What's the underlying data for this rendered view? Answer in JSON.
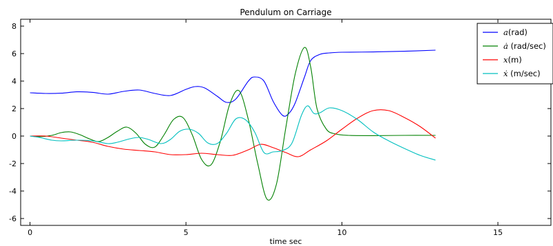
{
  "chart_data": {
    "type": "line",
    "title": "Pendulum on Carriage",
    "xlabel": "time sec",
    "ylabel": "",
    "xlim": [
      -0.3,
      16.7
    ],
    "ylim": [
      -6.5,
      8.5
    ],
    "x_ticks": [
      0,
      5,
      10,
      15
    ],
    "y_ticks": [
      -6,
      -4,
      -2,
      0,
      2,
      4,
      6,
      8
    ],
    "grid": false,
    "legend_placement": "top-right",
    "series": [
      {
        "name": "a(rad)",
        "label_parts": [
          "a",
          "(rad)"
        ],
        "color": "#0000ff",
        "x": [
          0,
          0.5,
          1.0,
          1.5,
          2.0,
          2.5,
          3.0,
          3.5,
          4.0,
          4.5,
          5.0,
          5.3,
          5.6,
          6.0,
          6.3,
          6.6,
          7.0,
          7.2,
          7.5,
          7.8,
          8.1,
          8.3,
          8.5,
          8.8,
          9.0,
          9.3,
          9.6,
          10.0,
          11.0,
          12.0,
          13.0
        ],
        "y": [
          3.15,
          3.1,
          3.12,
          3.22,
          3.18,
          3.05,
          3.25,
          3.35,
          3.1,
          2.95,
          3.4,
          3.6,
          3.5,
          2.9,
          2.45,
          2.7,
          4.0,
          4.3,
          4.0,
          2.5,
          1.5,
          1.65,
          2.4,
          4.3,
          5.5,
          5.95,
          6.05,
          6.1,
          6.12,
          6.17,
          6.25
        ]
      },
      {
        "name": "ȧ (rad/sec)",
        "label_parts": [
          "ȧ",
          " (rad/sec)"
        ],
        "color": "#008000",
        "x": [
          0,
          0.3,
          0.7,
          1.0,
          1.3,
          1.6,
          1.9,
          2.2,
          2.5,
          2.8,
          3.1,
          3.4,
          3.7,
          4.0,
          4.3,
          4.6,
          4.9,
          5.2,
          5.5,
          5.8,
          6.1,
          6.4,
          6.7,
          7.0,
          7.3,
          7.6,
          7.9,
          8.2,
          8.5,
          8.8,
          9.0,
          9.2,
          9.5,
          9.8,
          10.2,
          11.0,
          12.0,
          13.0
        ],
        "y": [
          0,
          -0.05,
          0.05,
          0.25,
          0.3,
          0.1,
          -0.2,
          -0.4,
          -0.1,
          0.35,
          0.65,
          0.2,
          -0.6,
          -0.8,
          0.1,
          1.2,
          1.35,
          0.1,
          -1.7,
          -2.1,
          -0.4,
          2.3,
          3.3,
          1.2,
          -2.0,
          -4.6,
          -3.5,
          0.6,
          4.5,
          6.45,
          5.0,
          2.0,
          0.5,
          0.15,
          0.05,
          0.03,
          0.05,
          0.05
        ]
      },
      {
        "name": "x(m)",
        "label_parts": [
          "x",
          "(m)"
        ],
        "color": "#ff0000",
        "x": [
          0,
          0.5,
          1.0,
          1.5,
          2.0,
          2.5,
          3.0,
          3.5,
          4.0,
          4.5,
          5.0,
          5.5,
          6.0,
          6.5,
          7.0,
          7.4,
          7.8,
          8.2,
          8.6,
          9.0,
          9.5,
          10.0,
          10.5,
          11.0,
          11.5,
          12.0,
          12.5,
          13.0
        ],
        "y": [
          0,
          0,
          -0.15,
          -0.3,
          -0.45,
          -0.75,
          -0.95,
          -1.05,
          -1.15,
          -1.35,
          -1.35,
          -1.25,
          -1.35,
          -1.4,
          -1.0,
          -0.6,
          -0.85,
          -1.2,
          -1.5,
          -1.0,
          -0.35,
          0.5,
          1.3,
          1.85,
          1.85,
          1.35,
          0.7,
          -0.15
        ]
      },
      {
        "name": "ẋ (m/sec)",
        "label_parts": [
          "ẋ",
          " (m/sec)"
        ],
        "color": "#00bfbf",
        "x": [
          0,
          0.3,
          0.7,
          1.0,
          1.5,
          2.0,
          2.5,
          2.8,
          3.2,
          3.5,
          3.8,
          4.2,
          4.5,
          4.8,
          5.1,
          5.4,
          5.7,
          6.0,
          6.3,
          6.6,
          6.9,
          7.2,
          7.5,
          7.8,
          8.1,
          8.4,
          8.7,
          8.9,
          9.1,
          9.3,
          9.6,
          10.0,
          10.5,
          11.0,
          11.5,
          12.0,
          12.5,
          13.0
        ],
        "y": [
          0,
          -0.1,
          -0.3,
          -0.35,
          -0.3,
          -0.35,
          -0.55,
          -0.45,
          -0.2,
          -0.1,
          -0.25,
          -0.55,
          -0.25,
          0.35,
          0.5,
          0.2,
          -0.5,
          -0.55,
          0.2,
          1.25,
          1.2,
          0.3,
          -1.2,
          -1.15,
          -1.05,
          -0.5,
          1.5,
          2.2,
          1.65,
          1.7,
          2.05,
          1.85,
          1.2,
          0.3,
          -0.35,
          -0.9,
          -1.4,
          -1.75
        ]
      }
    ]
  }
}
